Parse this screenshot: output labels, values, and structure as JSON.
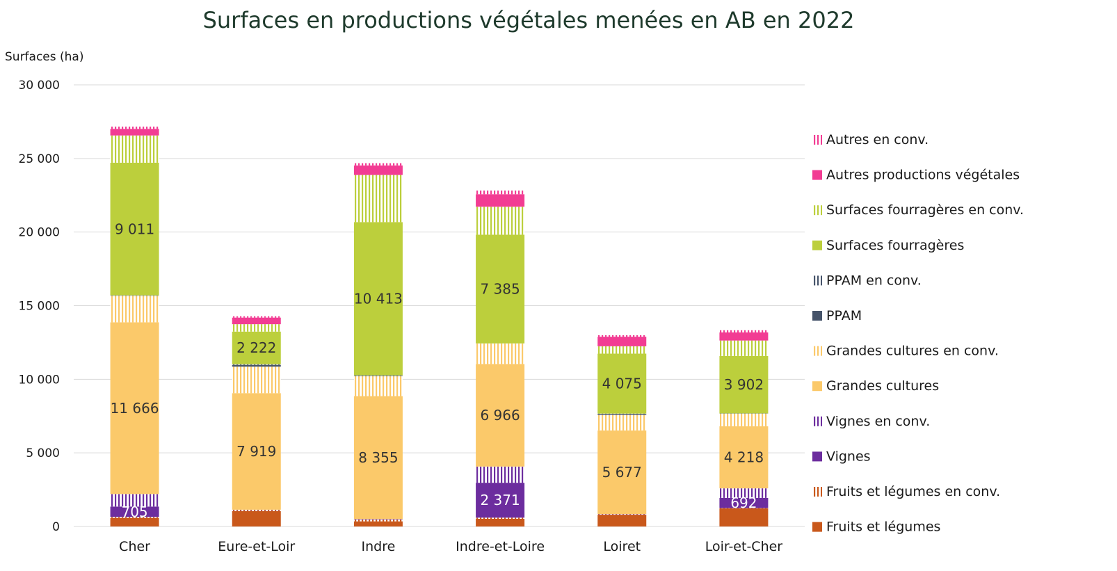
{
  "chart_data": {
    "type": "bar",
    "stacked": true,
    "title": "Surfaces en productions végétales menées en AB en 2022",
    "ylabel": "Surfaces (ha)",
    "xlabel": "",
    "ylim": [
      0,
      30000
    ],
    "yticks": [
      0,
      5000,
      10000,
      15000,
      20000,
      25000,
      30000
    ],
    "ytick_labels": [
      "0",
      "5 000",
      "10 000",
      "15 000",
      "20 000",
      "25 000",
      "30 000"
    ],
    "grid": true,
    "legend_position": "right",
    "categories": [
      "Cher",
      "Eure-et-Loir",
      "Indre",
      "Indre-et-Loire",
      "Loiret",
      "Loir-et-Cher"
    ],
    "series": [
      {
        "name": "Fruits et légumes",
        "color": "#c9581b",
        "pattern": false,
        "values": [
          580,
          1050,
          350,
          520,
          800,
          1230
        ],
        "labels": [
          "",
          "",
          "",
          "",
          "",
          ""
        ]
      },
      {
        "name": "Fruits et légumes en conv.",
        "color": "#c9581b",
        "pattern": true,
        "values": [
          70,
          60,
          100,
          80,
          30,
          20
        ],
        "labels": [
          "",
          "",
          "",
          "",
          "",
          ""
        ]
      },
      {
        "name": "Vignes",
        "color": "#6c2d9e",
        "pattern": false,
        "values": [
          705,
          0,
          30,
          2371,
          10,
          692
        ],
        "labels": [
          "705",
          "",
          "",
          "2 371",
          "",
          "692"
        ]
      },
      {
        "name": "Vignes en conv.",
        "color": "#6c2d9e",
        "pattern": true,
        "values": [
          850,
          30,
          20,
          1100,
          10,
          650
        ],
        "labels": [
          "",
          "",
          "",
          "",
          "",
          ""
        ]
      },
      {
        "name": "Grandes cultures",
        "color": "#fbc96a",
        "pattern": false,
        "values": [
          11666,
          7919,
          8355,
          6966,
          5677,
          4218
        ],
        "labels": [
          "11 666",
          "7 919",
          "8 355",
          "6 966",
          "5 677",
          "4 218"
        ]
      },
      {
        "name": "Grandes cultures en conv.",
        "color": "#fbc96a",
        "pattern": true,
        "values": [
          1800,
          1800,
          1350,
          1400,
          1050,
          850
        ],
        "labels": [
          "",
          "",
          "",
          "",
          "",
          ""
        ]
      },
      {
        "name": "PPAM",
        "color": "#46546a",
        "pattern": false,
        "values": [
          20,
          120,
          40,
          0,
          70,
          10
        ],
        "labels": [
          "",
          "",
          "",
          "",
          "",
          ""
        ]
      },
      {
        "name": "PPAM en conv.",
        "color": "#46546a",
        "pattern": true,
        "values": [
          10,
          40,
          20,
          0,
          20,
          10
        ],
        "labels": [
          "",
          "",
          "",
          "",
          "",
          ""
        ]
      },
      {
        "name": "Surfaces fourragères",
        "color": "#bccf3c",
        "pattern": false,
        "values": [
          9011,
          2222,
          10413,
          7385,
          4075,
          3902
        ],
        "labels": [
          "9 011",
          "2 222",
          "10 413",
          "7 385",
          "4 075",
          "3 902"
        ]
      },
      {
        "name": "Surfaces fourragères en conv.",
        "color": "#bccf3c",
        "pattern": true,
        "values": [
          1850,
          500,
          3200,
          1900,
          500,
          1050
        ],
        "labels": [
          "",
          "",
          "",
          "",
          "",
          ""
        ]
      },
      {
        "name": "Autres productions végétales",
        "color": "#f23c93",
        "pattern": false,
        "values": [
          450,
          450,
          650,
          850,
          650,
          550
        ],
        "labels": [
          "",
          "",
          "",
          "",
          "",
          ""
        ]
      },
      {
        "name": "Autres en conv.",
        "color": "#f23c93",
        "pattern": true,
        "values": [
          150,
          90,
          150,
          250,
          100,
          150
        ],
        "labels": [
          "",
          "",
          "",
          "",
          "",
          ""
        ]
      }
    ]
  }
}
